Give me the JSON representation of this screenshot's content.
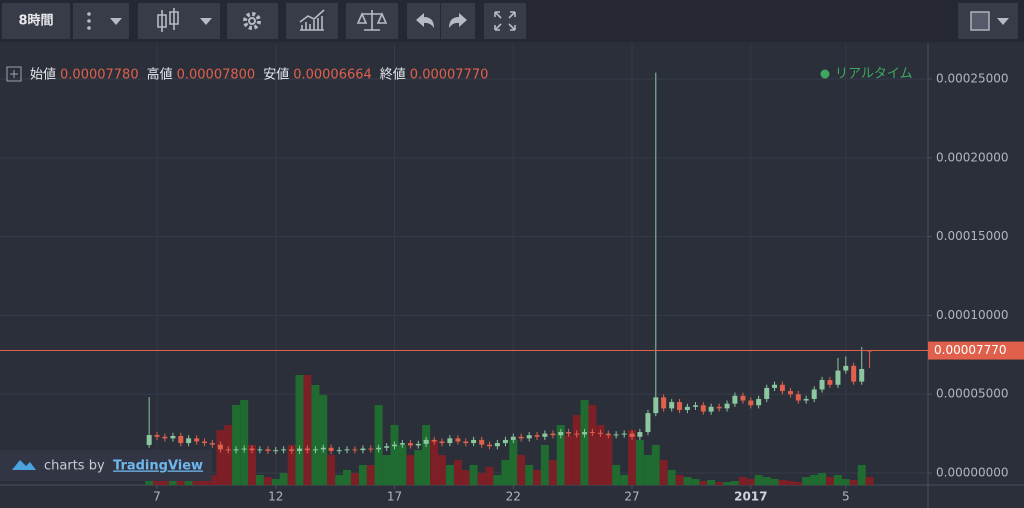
{
  "toolbar": {
    "interval": "8時間"
  },
  "header": {
    "items": [
      {
        "label": "始値",
        "value": "0.00007780"
      },
      {
        "label": "高値",
        "value": "0.00007800"
      },
      {
        "label": "安値",
        "value": "0.00006664"
      },
      {
        "label": "終値",
        "value": "0.00007770"
      }
    ]
  },
  "status": "リアルタイム",
  "watermark": {
    "prefix": "charts by",
    "brand": "TradingView"
  },
  "chart_data": {
    "type": "candlestick",
    "x": [
      6.67,
      7,
      7.33,
      7.67,
      8,
      8.33,
      8.67,
      9,
      9.33,
      9.67,
      10,
      10.33,
      10.67,
      11,
      11.33,
      11.67,
      12,
      12.33,
      12.67,
      13,
      13.33,
      13.67,
      14,
      14.33,
      14.67,
      15,
      15.33,
      15.67,
      16,
      16.33,
      16.67,
      17,
      17.33,
      17.67,
      18,
      18.33,
      18.67,
      19,
      19.33,
      19.67,
      20,
      20.33,
      20.67,
      21,
      21.33,
      21.67,
      22,
      22.33,
      22.67,
      23,
      23.33,
      23.67,
      24,
      24.33,
      24.67,
      25,
      25.33,
      25.67,
      26,
      26.33,
      26.67,
      27,
      27.33,
      27.67,
      28,
      28.33,
      28.67,
      29,
      29.33,
      29.67,
      30,
      30.33,
      30.67,
      31,
      31.33,
      31.67,
      32,
      32.33,
      32.67,
      33,
      33.33,
      33.67,
      34,
      34.33,
      34.67,
      35,
      35.33,
      35.67,
      36,
      36.33,
      36.67,
      37
    ],
    "open": [
      1.78e-05,
      2.41e-05,
      2.3e-05,
      2.2e-05,
      2.35e-05,
      1.9e-05,
      2.2e-05,
      2e-05,
      1.9e-05,
      1.8e-05,
      1.5e-05,
      1.45e-05,
      1.5e-05,
      1.55e-05,
      1.45e-05,
      1.5e-05,
      1.4e-05,
      1.45e-05,
      1.5e-05,
      1.4e-05,
      1.55e-05,
      1.45e-05,
      1.5e-05,
      1.6e-05,
      1.4e-05,
      1.45e-05,
      1.5e-05,
      1.45e-05,
      1.55e-05,
      1.5e-05,
      1.6e-05,
      1.7e-05,
      1.8e-05,
      1.9e-05,
      1.75e-05,
      1.85e-05,
      2.1e-05,
      2e-05,
      1.9e-05,
      2.2e-05,
      2e-05,
      1.9e-05,
      2.1e-05,
      1.8e-05,
      1.7e-05,
      1.9e-05,
      2.1e-05,
      2.3e-05,
      2.2e-05,
      2.4e-05,
      2.3e-05,
      2.5e-05,
      2.4e-05,
      2.6e-05,
      2.5e-05,
      2.45e-05,
      2.6e-05,
      2.55e-05,
      2.5e-05,
      2.4e-05,
      2.45e-05,
      2.5e-05,
      2.3e-05,
      2.6e-05,
      3.8e-05,
      4.8e-05,
      4.1e-05,
      4.5e-05,
      4e-05,
      4.2e-05,
      4.3e-05,
      3.9e-05,
      4.2e-05,
      4.1e-05,
      4.4e-05,
      4.9e-05,
      4.6e-05,
      4.3e-05,
      4.7e-05,
      5.4e-05,
      5.6e-05,
      5.2e-05,
      5e-05,
      4.6e-05,
      4.7e-05,
      5.3e-05,
      5.9e-05,
      5.6e-05,
      6.5e-05,
      6.8e-05,
      5.8e-05,
      7.78e-05
    ],
    "high": [
      4.82e-05,
      2.6e-05,
      2.5e-05,
      2.55e-05,
      2.55e-05,
      2.4e-05,
      2.4e-05,
      2.2e-05,
      2.1e-05,
      2e-05,
      1.7e-05,
      1.7e-05,
      1.75e-05,
      1.75e-05,
      1.7e-05,
      1.7e-05,
      1.65e-05,
      1.7e-05,
      1.7e-05,
      1.75e-05,
      1.75e-05,
      1.7e-05,
      1.8e-05,
      1.8e-05,
      1.65e-05,
      1.7e-05,
      1.7e-05,
      1.75e-05,
      1.75e-05,
      1.8e-05,
      1.9e-05,
      2e-05,
      2.1e-05,
      2.1e-05,
      2.05e-05,
      2.3e-05,
      2.3e-05,
      2.2e-05,
      2.4e-05,
      2.4e-05,
      2.2e-05,
      2.3e-05,
      2.3e-05,
      2e-05,
      2.1e-05,
      2.3e-05,
      2.5e-05,
      2.5e-05,
      2.6e-05,
      2.6e-05,
      2.7e-05,
      2.7e-05,
      2.8e-05,
      2.8e-05,
      2.7e-05,
      2.8e-05,
      2.8e-05,
      2.75e-05,
      2.7e-05,
      2.65e-05,
      2.7e-05,
      2.7e-05,
      2.8e-05,
      4e-05,
      0.000254,
      5e-05,
      4.7e-05,
      4.7e-05,
      4.4e-05,
      4.5e-05,
      4.5e-05,
      4.4e-05,
      4.4e-05,
      4.6e-05,
      5.1e-05,
      5.1e-05,
      4.8e-05,
      4.9e-05,
      5.6e-05,
      5.8e-05,
      5.8e-05,
      5.4e-05,
      5.2e-05,
      4.9e-05,
      5.5e-05,
      6.1e-05,
      6.1e-05,
      7.3e-05,
      7.4e-05,
      7e-05,
      8e-05,
      7.8e-05
    ],
    "low": [
      1.6e-05,
      2.1e-05,
      2e-05,
      2e-05,
      1.7e-05,
      1.7e-05,
      1.8e-05,
      1.7e-05,
      1.6e-05,
      1.3e-05,
      1.25e-05,
      1.25e-05,
      1.3e-05,
      1.25e-05,
      1.25e-05,
      1.2e-05,
      1.2e-05,
      1.25e-05,
      1.2e-05,
      1.2e-05,
      1.25e-05,
      1.25e-05,
      1.3e-05,
      1.2e-05,
      1.2e-05,
      1.25e-05,
      1.25e-05,
      1.25e-05,
      1.3e-05,
      1.3e-05,
      1.4e-05,
      1.5e-05,
      1.6e-05,
      1.55e-05,
      1.55e-05,
      1.65e-05,
      1.8e-05,
      1.7e-05,
      1.7e-05,
      1.8e-05,
      1.7e-05,
      1.7e-05,
      1.6e-05,
      1.5e-05,
      1.5e-05,
      1.7e-05,
      1.9e-05,
      2e-05,
      2e-05,
      2.1e-05,
      2.1e-05,
      2.2e-05,
      2.2e-05,
      2.3e-05,
      2.25e-05,
      2.25e-05,
      2.35e-05,
      2.3e-05,
      2.2e-05,
      2.2e-05,
      2.25e-05,
      2.1e-05,
      2.1e-05,
      2.4e-05,
      3.6e-05,
      3.9e-05,
      3.9e-05,
      3.8e-05,
      3.8e-05,
      4e-05,
      3.7e-05,
      3.7e-05,
      3.9e-05,
      3.9e-05,
      4.2e-05,
      4.4e-05,
      4.1e-05,
      4.1e-05,
      4.5e-05,
      5.2e-05,
      5e-05,
      4.8e-05,
      4.4e-05,
      4.4e-05,
      4.5e-05,
      5.1e-05,
      5.4e-05,
      5.4e-05,
      6.3e-05,
      5.6e-05,
      5.6e-05,
      6.664e-05
    ],
    "close": [
      2.41e-05,
      2.3e-05,
      2.2e-05,
      2.35e-05,
      1.9e-05,
      2.2e-05,
      2e-05,
      1.9e-05,
      1.8e-05,
      1.5e-05,
      1.45e-05,
      1.5e-05,
      1.55e-05,
      1.45e-05,
      1.5e-05,
      1.4e-05,
      1.45e-05,
      1.5e-05,
      1.4e-05,
      1.55e-05,
      1.45e-05,
      1.5e-05,
      1.6e-05,
      1.4e-05,
      1.45e-05,
      1.5e-05,
      1.45e-05,
      1.55e-05,
      1.5e-05,
      1.6e-05,
      1.7e-05,
      1.8e-05,
      1.9e-05,
      1.75e-05,
      1.85e-05,
      2.1e-05,
      2e-05,
      1.9e-05,
      2.2e-05,
      2e-05,
      1.9e-05,
      2.1e-05,
      1.8e-05,
      1.7e-05,
      1.9e-05,
      2.1e-05,
      2.3e-05,
      2.2e-05,
      2.4e-05,
      2.3e-05,
      2.5e-05,
      2.4e-05,
      2.6e-05,
      2.5e-05,
      2.45e-05,
      2.6e-05,
      2.55e-05,
      2.5e-05,
      2.4e-05,
      2.45e-05,
      2.5e-05,
      2.3e-05,
      2.6e-05,
      3.8e-05,
      4.8e-05,
      4.1e-05,
      4.5e-05,
      4e-05,
      4.2e-05,
      4.3e-05,
      3.9e-05,
      4.2e-05,
      4.1e-05,
      4.4e-05,
      4.9e-05,
      4.6e-05,
      4.3e-05,
      4.7e-05,
      5.4e-05,
      5.6e-05,
      5.2e-05,
      5e-05,
      4.6e-05,
      4.7e-05,
      5.3e-05,
      5.9e-05,
      5.6e-05,
      6.5e-05,
      6.8e-05,
      5.8e-05,
      6.6e-05,
      7.77e-05
    ],
    "volume": [
      10,
      5,
      5,
      4,
      6,
      5,
      8,
      6,
      10,
      55,
      60,
      80,
      85,
      40,
      10,
      8,
      6,
      12,
      40,
      110,
      110,
      100,
      90,
      30,
      10,
      15,
      12,
      20,
      20,
      80,
      30,
      60,
      40,
      30,
      35,
      60,
      45,
      30,
      20,
      25,
      15,
      20,
      12,
      18,
      10,
      25,
      45,
      30,
      20,
      15,
      40,
      25,
      60,
      50,
      70,
      85,
      80,
      60,
      50,
      20,
      10,
      55,
      45,
      30,
      40,
      25,
      15,
      10,
      8,
      6,
      4,
      5,
      3,
      3,
      4,
      8,
      6,
      10,
      8,
      6,
      5,
      4,
      3,
      8,
      10,
      12,
      8,
      10,
      6,
      5,
      20,
      8
    ],
    "xlim": [
      0.39,
      39.46
    ],
    "xticks": [
      7,
      12,
      17,
      22,
      27,
      {
        "value": 32,
        "label": "2017"
      },
      {
        "value": 36,
        "label": "5"
      }
    ],
    "ylim": [
      -7.6e-06,
      0.0002722
    ],
    "yticks": [
      {
        "value": 0,
        "label": "0.00000000"
      },
      {
        "value": 5e-05,
        "label": "0.00005000"
      },
      {
        "value": 0.0001,
        "label": "0.00010000"
      },
      {
        "value": 0.00015,
        "label": "0.00015000"
      },
      {
        "value": 0.0002,
        "label": "0.00020000"
      },
      {
        "value": 0.00025,
        "label": "0.00025000"
      }
    ],
    "grid": true,
    "last_price_label": "0.00007770",
    "up_color": "#8cc7a0",
    "down_color": "#e0604c",
    "volume_up_color": "#1f6b30",
    "volume_down_color": "#7d1f26",
    "last_price_color": "#e0604c"
  }
}
